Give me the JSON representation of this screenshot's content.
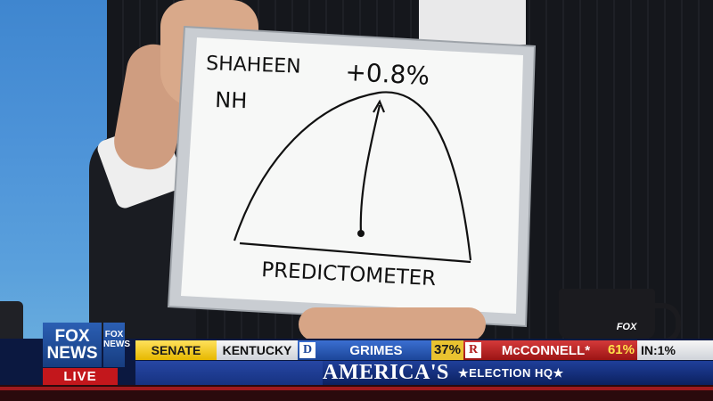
{
  "whiteboard": {
    "name_line": "SHAHEEN",
    "state_line": "NH",
    "margin": "+0.8%",
    "caption": "PREDICTOMETER"
  },
  "bug": {
    "fox_news": "FOX NEWS",
    "fox_news_small": "FOX NEWS",
    "live": "LIVE"
  },
  "ticker": {
    "race_type": "SENATE",
    "state": "KENTUCKY",
    "dem_letter": "D",
    "dem_candidate": "GRIMES",
    "dem_pct": "37%",
    "rep_letter": "R",
    "rep_candidate": "McCONNELL*",
    "rep_pct": "61%",
    "reporting": "IN:1%",
    "show_title": "AMERICA'S",
    "show_subtitle": "★ELECTION HQ★"
  },
  "mug_logo": "FOX",
  "colors": {
    "background_blue": "#4d93d8",
    "dem_blue": "#1c4699",
    "rep_red": "#9c1414",
    "senate_yellow": "#e6b800",
    "live_red": "#c3171c"
  }
}
